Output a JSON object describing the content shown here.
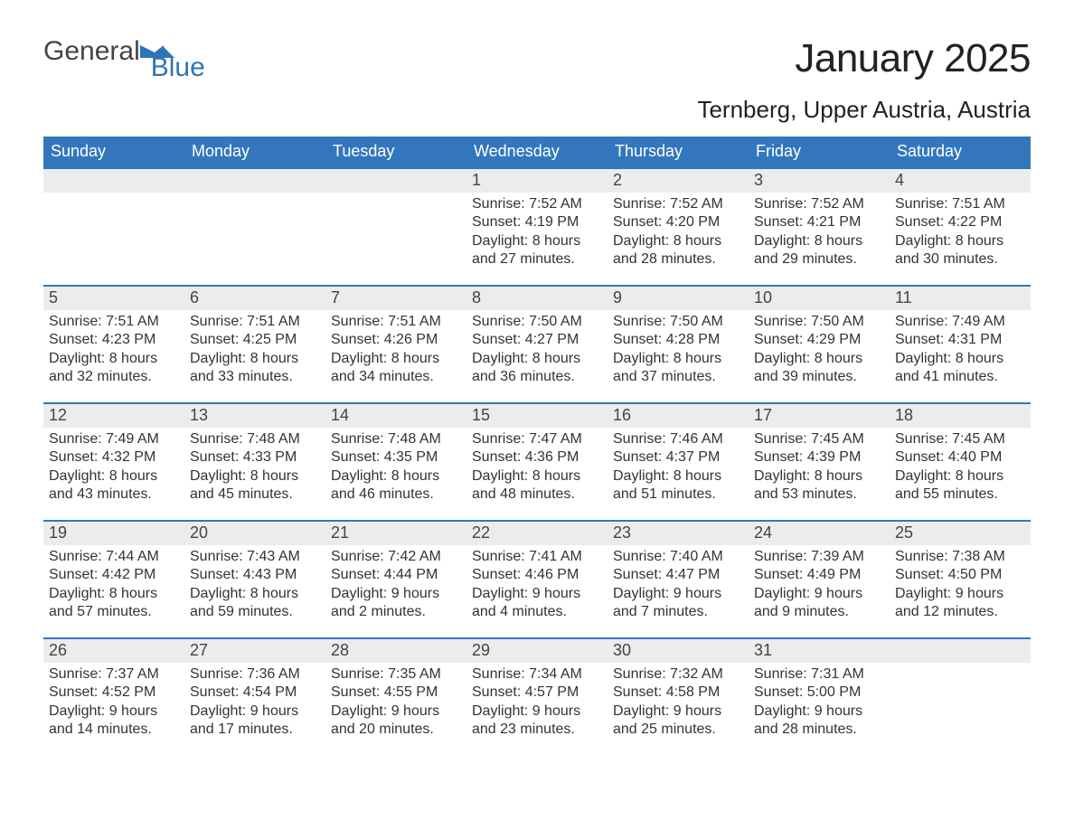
{
  "logo": {
    "text1": "General",
    "text2": "Blue",
    "color_general": "#444444",
    "color_blue": "#2e75b6"
  },
  "title": "January 2025",
  "location": "Ternberg, Upper Austria, Austria",
  "colors": {
    "header_bg": "#3277bd",
    "header_text": "#ffffff",
    "daynum_bg": "#ececec",
    "body_text": "#333333",
    "week_border": "#3277bd"
  },
  "daysOfWeek": [
    "Sunday",
    "Monday",
    "Tuesday",
    "Wednesday",
    "Thursday",
    "Friday",
    "Saturday"
  ],
  "weeks": [
    [
      {
        "blank": true
      },
      {
        "blank": true
      },
      {
        "blank": true
      },
      {
        "day": "1",
        "sunrise": "Sunrise: 7:52 AM",
        "sunset": "Sunset: 4:19 PM",
        "daylight1": "Daylight: 8 hours",
        "daylight2": "and 27 minutes."
      },
      {
        "day": "2",
        "sunrise": "Sunrise: 7:52 AM",
        "sunset": "Sunset: 4:20 PM",
        "daylight1": "Daylight: 8 hours",
        "daylight2": "and 28 minutes."
      },
      {
        "day": "3",
        "sunrise": "Sunrise: 7:52 AM",
        "sunset": "Sunset: 4:21 PM",
        "daylight1": "Daylight: 8 hours",
        "daylight2": "and 29 minutes."
      },
      {
        "day": "4",
        "sunrise": "Sunrise: 7:51 AM",
        "sunset": "Sunset: 4:22 PM",
        "daylight1": "Daylight: 8 hours",
        "daylight2": "and 30 minutes."
      }
    ],
    [
      {
        "day": "5",
        "sunrise": "Sunrise: 7:51 AM",
        "sunset": "Sunset: 4:23 PM",
        "daylight1": "Daylight: 8 hours",
        "daylight2": "and 32 minutes."
      },
      {
        "day": "6",
        "sunrise": "Sunrise: 7:51 AM",
        "sunset": "Sunset: 4:25 PM",
        "daylight1": "Daylight: 8 hours",
        "daylight2": "and 33 minutes."
      },
      {
        "day": "7",
        "sunrise": "Sunrise: 7:51 AM",
        "sunset": "Sunset: 4:26 PM",
        "daylight1": "Daylight: 8 hours",
        "daylight2": "and 34 minutes."
      },
      {
        "day": "8",
        "sunrise": "Sunrise: 7:50 AM",
        "sunset": "Sunset: 4:27 PM",
        "daylight1": "Daylight: 8 hours",
        "daylight2": "and 36 minutes."
      },
      {
        "day": "9",
        "sunrise": "Sunrise: 7:50 AM",
        "sunset": "Sunset: 4:28 PM",
        "daylight1": "Daylight: 8 hours",
        "daylight2": "and 37 minutes."
      },
      {
        "day": "10",
        "sunrise": "Sunrise: 7:50 AM",
        "sunset": "Sunset: 4:29 PM",
        "daylight1": "Daylight: 8 hours",
        "daylight2": "and 39 minutes."
      },
      {
        "day": "11",
        "sunrise": "Sunrise: 7:49 AM",
        "sunset": "Sunset: 4:31 PM",
        "daylight1": "Daylight: 8 hours",
        "daylight2": "and 41 minutes."
      }
    ],
    [
      {
        "day": "12",
        "sunrise": "Sunrise: 7:49 AM",
        "sunset": "Sunset: 4:32 PM",
        "daylight1": "Daylight: 8 hours",
        "daylight2": "and 43 minutes."
      },
      {
        "day": "13",
        "sunrise": "Sunrise: 7:48 AM",
        "sunset": "Sunset: 4:33 PM",
        "daylight1": "Daylight: 8 hours",
        "daylight2": "and 45 minutes."
      },
      {
        "day": "14",
        "sunrise": "Sunrise: 7:48 AM",
        "sunset": "Sunset: 4:35 PM",
        "daylight1": "Daylight: 8 hours",
        "daylight2": "and 46 minutes."
      },
      {
        "day": "15",
        "sunrise": "Sunrise: 7:47 AM",
        "sunset": "Sunset: 4:36 PM",
        "daylight1": "Daylight: 8 hours",
        "daylight2": "and 48 minutes."
      },
      {
        "day": "16",
        "sunrise": "Sunrise: 7:46 AM",
        "sunset": "Sunset: 4:37 PM",
        "daylight1": "Daylight: 8 hours",
        "daylight2": "and 51 minutes."
      },
      {
        "day": "17",
        "sunrise": "Sunrise: 7:45 AM",
        "sunset": "Sunset: 4:39 PM",
        "daylight1": "Daylight: 8 hours",
        "daylight2": "and 53 minutes."
      },
      {
        "day": "18",
        "sunrise": "Sunrise: 7:45 AM",
        "sunset": "Sunset: 4:40 PM",
        "daylight1": "Daylight: 8 hours",
        "daylight2": "and 55 minutes."
      }
    ],
    [
      {
        "day": "19",
        "sunrise": "Sunrise: 7:44 AM",
        "sunset": "Sunset: 4:42 PM",
        "daylight1": "Daylight: 8 hours",
        "daylight2": "and 57 minutes."
      },
      {
        "day": "20",
        "sunrise": "Sunrise: 7:43 AM",
        "sunset": "Sunset: 4:43 PM",
        "daylight1": "Daylight: 8 hours",
        "daylight2": "and 59 minutes."
      },
      {
        "day": "21",
        "sunrise": "Sunrise: 7:42 AM",
        "sunset": "Sunset: 4:44 PM",
        "daylight1": "Daylight: 9 hours",
        "daylight2": "and 2 minutes."
      },
      {
        "day": "22",
        "sunrise": "Sunrise: 7:41 AM",
        "sunset": "Sunset: 4:46 PM",
        "daylight1": "Daylight: 9 hours",
        "daylight2": "and 4 minutes."
      },
      {
        "day": "23",
        "sunrise": "Sunrise: 7:40 AM",
        "sunset": "Sunset: 4:47 PM",
        "daylight1": "Daylight: 9 hours",
        "daylight2": "and 7 minutes."
      },
      {
        "day": "24",
        "sunrise": "Sunrise: 7:39 AM",
        "sunset": "Sunset: 4:49 PM",
        "daylight1": "Daylight: 9 hours",
        "daylight2": "and 9 minutes."
      },
      {
        "day": "25",
        "sunrise": "Sunrise: 7:38 AM",
        "sunset": "Sunset: 4:50 PM",
        "daylight1": "Daylight: 9 hours",
        "daylight2": "and 12 minutes."
      }
    ],
    [
      {
        "day": "26",
        "sunrise": "Sunrise: 7:37 AM",
        "sunset": "Sunset: 4:52 PM",
        "daylight1": "Daylight: 9 hours",
        "daylight2": "and 14 minutes."
      },
      {
        "day": "27",
        "sunrise": "Sunrise: 7:36 AM",
        "sunset": "Sunset: 4:54 PM",
        "daylight1": "Daylight: 9 hours",
        "daylight2": "and 17 minutes."
      },
      {
        "day": "28",
        "sunrise": "Sunrise: 7:35 AM",
        "sunset": "Sunset: 4:55 PM",
        "daylight1": "Daylight: 9 hours",
        "daylight2": "and 20 minutes."
      },
      {
        "day": "29",
        "sunrise": "Sunrise: 7:34 AM",
        "sunset": "Sunset: 4:57 PM",
        "daylight1": "Daylight: 9 hours",
        "daylight2": "and 23 minutes."
      },
      {
        "day": "30",
        "sunrise": "Sunrise: 7:32 AM",
        "sunset": "Sunset: 4:58 PM",
        "daylight1": "Daylight: 9 hours",
        "daylight2": "and 25 minutes."
      },
      {
        "day": "31",
        "sunrise": "Sunrise: 7:31 AM",
        "sunset": "Sunset: 5:00 PM",
        "daylight1": "Daylight: 9 hours",
        "daylight2": "and 28 minutes."
      },
      {
        "blank": true
      }
    ]
  ]
}
